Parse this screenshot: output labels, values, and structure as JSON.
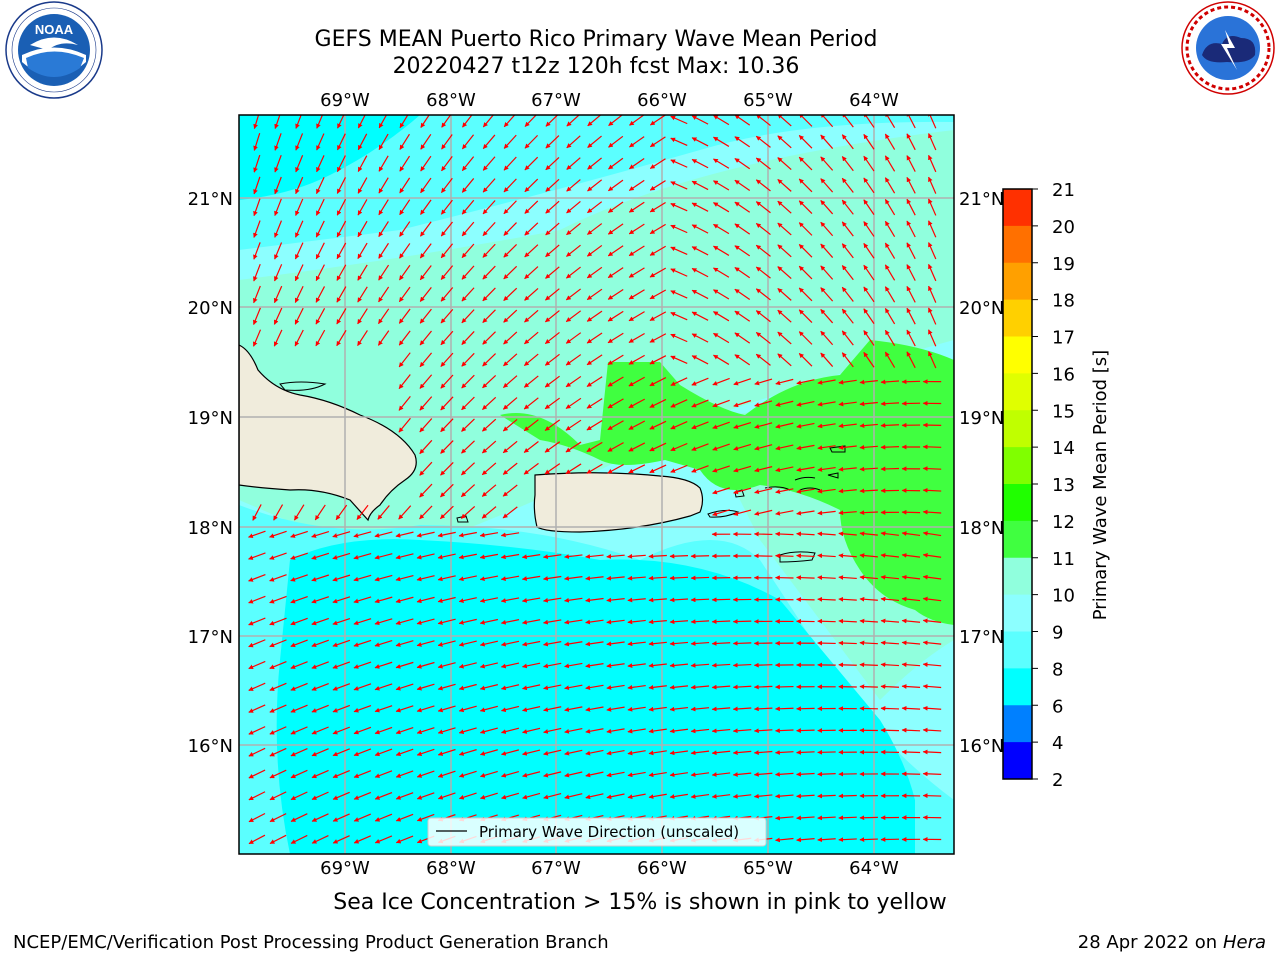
{
  "header": {
    "title_line1": "GEFS MEAN Puerto Rico Primary Wave Mean Period",
    "title_line2": "20220427 t12z 120h fcst   Max: 10.36"
  },
  "logos": {
    "left": {
      "name": "NOAA",
      "ring_text": "NATIONAL OCEANIC AND ATMOSPHERIC ADMINISTRATION",
      "bottom_text": "U.S. DEPARTMENT OF COMMERCE",
      "icon": "noaa-bird-logo"
    },
    "right": {
      "name": "NATIONAL WEATHER SERVICE",
      "icon": "nws-cloud-lightning-logo"
    }
  },
  "map": {
    "longitude_labels": [
      "69°W",
      "68°W",
      "67°W",
      "66°W",
      "65°W",
      "64°W"
    ],
    "latitude_labels": [
      "21°N",
      "20°N",
      "19°N",
      "18°N",
      "17°N",
      "16°N"
    ],
    "legend_label": "Primary Wave Direction (unscaled)",
    "arrow_color": "#ff0000",
    "land_color": "#f0ecdc",
    "grid_color": "#b0b0b0"
  },
  "colorbar": {
    "label": "Primary Wave Mean Period [s]",
    "ticks": [
      "2",
      "4",
      "6",
      "8",
      "9",
      "10",
      "11",
      "12",
      "13",
      "14",
      "15",
      "16",
      "17",
      "18",
      "19",
      "20",
      "21"
    ],
    "colors": [
      "#0000ff",
      "#0080ff",
      "#00ffff",
      "#5bffff",
      "#8cffff",
      "#90ffdd",
      "#40ff40",
      "#20ff00",
      "#80ff00",
      "#c0ff00",
      "#e0ff00",
      "#ffff00",
      "#ffd000",
      "#ffa000",
      "#ff7000",
      "#ff3000",
      "#ff0000"
    ]
  },
  "note": "Sea Ice Concentration > 15% is shown in pink to yellow",
  "footer": {
    "left": "NCEP/EMC/Verification Post Processing Product Generation Branch",
    "right_date": "28 Apr 2022 on",
    "right_machine": "Hera"
  }
}
